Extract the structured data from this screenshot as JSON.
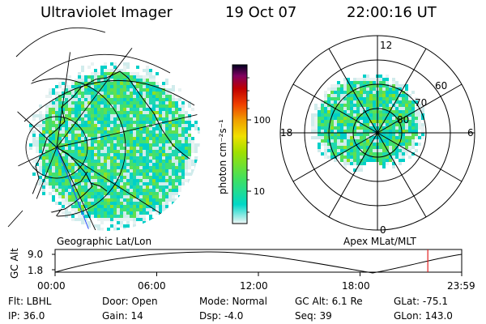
{
  "header": {
    "instrument": "Ultraviolet Imager",
    "date": "19 Oct 07",
    "time": "22:00:16 UT"
  },
  "panels": {
    "geo_caption": "Geographic Lat/Lon",
    "polar_caption": "Apex MLat/MLT",
    "polar_mlt_labels": [
      "12",
      "18",
      "6",
      "0"
    ],
    "polar_mlat_labels": [
      "60",
      "70",
      "80"
    ]
  },
  "colorbar": {
    "unit_label": "photon cm⁻²s⁻¹",
    "tick_labels": [
      "100",
      "10"
    ],
    "scale": "log",
    "colors": [
      "#e8f4f4",
      "#00d8c8",
      "#40e060",
      "#a0e000",
      "#f0e000",
      "#f0a000",
      "#f04000",
      "#c00000",
      "#a00040",
      "#400060",
      "#000000"
    ]
  },
  "altitude_plot": {
    "ylabel": "GC Alt",
    "y_ticks": [
      "9.0",
      "1.8"
    ],
    "x_ticks": [
      "00:00",
      "06:00",
      "12:00",
      "18:00",
      "23:59"
    ],
    "current_time_hours": 22.0,
    "marker_color": "#e02020"
  },
  "info": {
    "filter": "Flt: LBHL",
    "ip": "IP: 36.0",
    "door": "Door: Open",
    "gain": "Gain: 14",
    "mode": "Mode: Normal",
    "dsp": "Dsp:    -4.0",
    "gc_alt": "GC Alt: 6.1 Re",
    "seq": "Seq: 39",
    "glat": "GLat:  -75.1",
    "glon": "GLon: 143.0"
  }
}
